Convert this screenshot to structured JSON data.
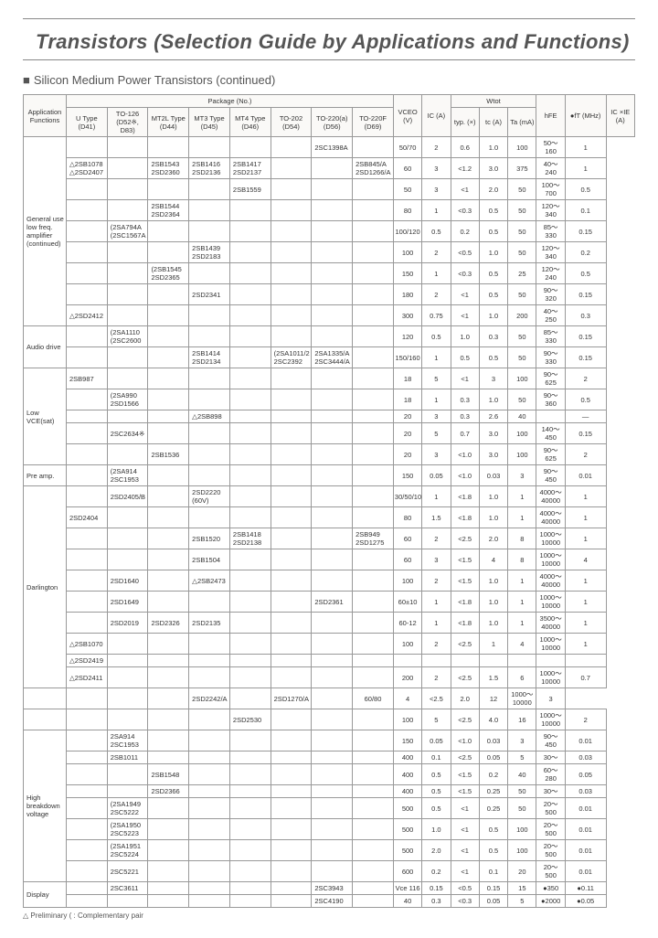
{
  "title": "Transistors (Selection Guide by Applications and Functions)",
  "subtitle": "Silicon Medium Power Transistors (continued)",
  "footnote": "△ Preliminary  ( : Complementary pair",
  "header": {
    "app": "Application Functions",
    "package": "Package (No.)",
    "pkg_cols": [
      "U Type (D41)",
      "TO-126 (D52※, D83)",
      "MT2L Type (D44)",
      "MT3 Type (D45)",
      "MT4 Type (D46)",
      "TO-202 (D54)",
      "TO-220(a) (D56)",
      "TO-220F (D69)"
    ],
    "vceo": "VCEO (V)",
    "ic": "IC (A)",
    "wtot": "Wtot",
    "wtot_sub": [
      "typ. (×)",
      "tc (A)",
      "Ta (mA)"
    ],
    "hfe": "hFE",
    "ft": "●fT (MHz)",
    "icvce": "IC ×IE (A)"
  },
  "apps": {
    "general": "General use low freq. amplifier (continued)",
    "audio": "Audio drive",
    "lowvce": "Low VCE(sat)",
    "preamp": "Pre amp.",
    "darlington": "Darlington",
    "highbv": "High breakdown voltage",
    "display": "Display"
  },
  "rows": [
    {
      "app": "general",
      "rowspan": 9,
      "pkg": [
        "",
        "",
        "",
        "",
        "",
        "",
        "2SC1398A",
        ""
      ],
      "spec": [
        "50/70",
        "2",
        "0.6",
        "1.0",
        "100",
        "50～160",
        "1"
      ]
    },
    {
      "pkg": [
        "△2SB1078 △2SD2407",
        "",
        "2SB1543 2SD2360",
        "2SB1416 2SD2136",
        "2SB1417 2SD2137",
        "",
        "",
        "2SB845/A 2SD1266/A"
      ],
      "spec": [
        "60",
        "3",
        "<1.2",
        "3.0",
        "375",
        "40～240",
        "1"
      ]
    },
    {
      "pkg": [
        "",
        "",
        "",
        "",
        "2SB1559",
        "",
        "",
        ""
      ],
      "spec": [
        "50",
        "3",
        "<1",
        "2.0",
        "50",
        "100～700",
        "0.5"
      ]
    },
    {
      "pkg": [
        "",
        "",
        "2SB1544 2SD2364",
        "",
        "",
        "",
        "",
        ""
      ],
      "spec": [
        "80",
        "1",
        "<0.3",
        "0.5",
        "50",
        "120～340",
        "0.1"
      ]
    },
    {
      "pkg": [
        "",
        "(2SA794A (2SC1567A",
        "",
        "",
        "",
        "",
        "",
        ""
      ],
      "spec": [
        "100/120",
        "0.5",
        "0.2",
        "0.5",
        "50",
        "85～330",
        "0.15"
      ]
    },
    {
      "pkg": [
        "",
        "",
        "",
        "2SB1439 2SD2183",
        "",
        "",
        "",
        ""
      ],
      "spec": [
        "100",
        "2",
        "<0.5",
        "1.0",
        "50",
        "120～340",
        "0.2"
      ]
    },
    {
      "pkg": [
        "",
        "",
        "(2SB1545 2SD2365",
        "",
        "",
        "",
        "",
        ""
      ],
      "spec": [
        "150",
        "1",
        "<0.3",
        "0.5",
        "25",
        "120～240",
        "0.5"
      ]
    },
    {
      "pkg": [
        "",
        "",
        "",
        "2SD2341",
        "",
        "",
        "",
        ""
      ],
      "spec": [
        "180",
        "2",
        "<1",
        "0.5",
        "50",
        "90～320",
        "0.15"
      ]
    },
    {
      "pkg": [
        "△2SD2412",
        "",
        "",
        "",
        "",
        "",
        "",
        ""
      ],
      "spec": [
        "300",
        "0.75",
        "<1",
        "1.0",
        "200",
        "40～250",
        "0.3"
      ]
    },
    {
      "app": "audio",
      "rowspan": 2,
      "pkg": [
        "",
        "(2SA1110 (2SC2600",
        "",
        "",
        "",
        "",
        "",
        ""
      ],
      "spec": [
        "120",
        "0.5",
        "1.0",
        "0.3",
        "50",
        "85～330",
        "0.15"
      ]
    },
    {
      "pkg": [
        "",
        "",
        "",
        "2SB1414 2SD2134",
        "",
        "(2SA1011/2 2SC2392",
        "2SA1335/A 2SC3444/A",
        ""
      ],
      "spec": [
        "150/160",
        "1",
        "0.5",
        "0.5",
        "50",
        "90～330",
        "0.15"
      ]
    },
    {
      "app": "lowvce",
      "rowspan": 5,
      "pkg": [
        "2SB987",
        "",
        "",
        "",
        "",
        "",
        "",
        ""
      ],
      "spec": [
        "18",
        "5",
        "<1",
        "3",
        "100",
        "90～625",
        "2"
      ]
    },
    {
      "pkg": [
        "",
        "(2SA990 2SD1566",
        "",
        "",
        "",
        "",
        "",
        ""
      ],
      "spec": [
        "18",
        "1",
        "0.3",
        "1.0",
        "50",
        "90～360",
        "0.5"
      ]
    },
    {
      "pkg": [
        "",
        "",
        "",
        "△2SB898",
        "",
        "",
        "",
        ""
      ],
      "spec": [
        "20",
        "3",
        "0.3",
        "2.6",
        "40",
        "",
        "—"
      ]
    },
    {
      "pkg": [
        "",
        "2SC2634※",
        "",
        "",
        "",
        "",
        "",
        ""
      ],
      "spec": [
        "20",
        "5",
        "0.7",
        "3.0",
        "100",
        "140～450",
        "0.15"
      ]
    },
    {
      "pkg": [
        "",
        "",
        "2SB1536",
        "",
        "",
        "",
        "",
        ""
      ],
      "spec": [
        "20",
        "3",
        "<1.0",
        "3.0",
        "100",
        "90～625",
        "2"
      ]
    },
    {
      "app": "preamp",
      "rowspan": 1,
      "pkg": [
        "",
        "(2SA914 2SC1953",
        "",
        "",
        "",
        "",
        "",
        ""
      ],
      "spec": [
        "150",
        "0.05",
        "<1.0",
        "0.03",
        "3",
        "90～450",
        "0.01"
      ]
    },
    {
      "app": "darlington",
      "rowspan": 10,
      "pkg": [
        "",
        "2SD2405/B",
        "",
        "2SD2220 (60V)",
        "",
        "",
        "",
        ""
      ],
      "spec": [
        "30/50/100",
        "1",
        "<1.8",
        "1.0",
        "1",
        "4000～40000",
        "1"
      ]
    },
    {
      "pkg": [
        "2SD2404",
        "",
        "",
        "",
        "",
        "",
        "",
        ""
      ],
      "spec": [
        "80",
        "1.5",
        "<1.8",
        "1.0",
        "1",
        "4000～40000",
        "1"
      ]
    },
    {
      "pkg": [
        "",
        "",
        "",
        "2SB1520",
        "2SB1418 2SD2138",
        "",
        "",
        "2SB949 2SD1275"
      ],
      "spec": [
        "60",
        "2",
        "<2.5",
        "2.0",
        "8",
        "1000～10000",
        "1"
      ]
    },
    {
      "pkg": [
        "",
        "",
        "",
        "2SB1504",
        "",
        "",
        "",
        ""
      ],
      "spec": [
        "60",
        "3",
        "<1.5",
        "4",
        "8",
        "1000～10000",
        "4"
      ]
    },
    {
      "pkg": [
        "",
        "2SD1640",
        "",
        "△2SB2473",
        "",
        "",
        "",
        ""
      ],
      "spec": [
        "100",
        "2",
        "<1.5",
        "1.0",
        "1",
        "4000～40000",
        "1"
      ]
    },
    {
      "pkg": [
        "",
        "2SD1649",
        "",
        "",
        "",
        "",
        "2SD2361",
        ""
      ],
      "spec": [
        "60±10",
        "1",
        "<1.8",
        "1.0",
        "1",
        "1000～10000",
        "1"
      ]
    },
    {
      "pkg": [
        "",
        "2SD2019",
        "2SD2326",
        "2SD2135",
        "",
        "",
        "",
        ""
      ],
      "spec": [
        "60-12",
        "1",
        "<1.8",
        "1.0",
        "1",
        "3500～40000",
        "1"
      ]
    },
    {
      "pkg": [
        "△2SB1070",
        "",
        "",
        "",
        "",
        "",
        "",
        ""
      ],
      "spec": [
        "100",
        "2",
        "<2.5",
        "1",
        "4",
        "1000～10000",
        "1"
      ]
    },
    {
      "pkg": [
        "△2SD2419",
        "",
        "",
        "",
        "",
        "",
        "",
        ""
      ],
      "spec": [
        "",
        "",
        "",
        "",
        "",
        "",
        ""
      ]
    },
    {
      "pkg": [
        "△2SD2411",
        "",
        "",
        "",
        "",
        "",
        "",
        ""
      ],
      "spec": [
        "200",
        "2",
        "<2.5",
        "1.5",
        "6",
        "1000～10000",
        "0.7"
      ]
    },
    {
      "app": "",
      "rowspan": 0,
      "pkg": [
        "",
        "",
        "",
        "",
        "2SD2242/A",
        "",
        "2SD1270/A",
        ""
      ],
      "spec": [
        "60/80",
        "4",
        "<2.5",
        "2.0",
        "12",
        "1000～10000",
        "3"
      ]
    },
    {
      "pkg": [
        "",
        "",
        "",
        "",
        "2SD2530",
        "",
        "",
        ""
      ],
      "spec": [
        "100",
        "5",
        "<2.5",
        "4.0",
        "16",
        "1000～10000",
        "2"
      ]
    },
    {
      "app": "highbv",
      "rowspan": 8,
      "pkg": [
        "",
        "2SA914 2SC1953",
        "",
        "",
        "",
        "",
        "",
        ""
      ],
      "spec": [
        "150",
        "0.05",
        "<1.0",
        "0.03",
        "3",
        "90～450",
        "0.01"
      ]
    },
    {
      "pkg": [
        "",
        "2SB1011",
        "",
        "",
        "",
        "",
        "",
        ""
      ],
      "spec": [
        "400",
        "0.1",
        "<2.5",
        "0.05",
        "5",
        "30～",
        "0.03"
      ]
    },
    {
      "pkg": [
        "",
        "",
        "2SB1548",
        "",
        "",
        "",
        "",
        ""
      ],
      "spec": [
        "400",
        "0.5",
        "<1.5",
        "0.2",
        "40",
        "60～280",
        "0.05"
      ]
    },
    {
      "pkg": [
        "",
        "",
        "2SD2366",
        "",
        "",
        "",
        "",
        ""
      ],
      "spec": [
        "400",
        "0.5",
        "<1.5",
        "0.25",
        "50",
        "30～",
        "0.03"
      ]
    },
    {
      "pkg": [
        "",
        "(2SA1949 2SC5222",
        "",
        "",
        "",
        "",
        "",
        ""
      ],
      "spec": [
        "500",
        "0.5",
        "<1",
        "0.25",
        "50",
        "20～500",
        "0.01"
      ]
    },
    {
      "pkg": [
        "",
        "(2SA1950 2SC5223",
        "",
        "",
        "",
        "",
        "",
        ""
      ],
      "spec": [
        "500",
        "1.0",
        "<1",
        "0.5",
        "100",
        "20～500",
        "0.01"
      ]
    },
    {
      "pkg": [
        "",
        "(2SA1951 2SC5224",
        "",
        "",
        "",
        "",
        "",
        ""
      ],
      "spec": [
        "500",
        "2.0",
        "<1",
        "0.5",
        "100",
        "20～500",
        "0.01"
      ]
    },
    {
      "pkg": [
        "",
        "2SC5221",
        "",
        "",
        "",
        "",
        "",
        ""
      ],
      "spec": [
        "600",
        "0.2",
        "<1",
        "0.1",
        "20",
        "20～500",
        "0.01"
      ]
    },
    {
      "app": "display",
      "rowspan": 2,
      "pkg": [
        "",
        "2SC3611",
        "",
        "",
        "",
        "",
        "2SC3943",
        ""
      ],
      "spec": [
        "Vce 116",
        "0.15",
        "<0.5",
        "0.15",
        "15",
        "●350",
        "●0.11"
      ]
    },
    {
      "pkg": [
        "",
        "",
        "",
        "",
        "",
        "",
        "2SC4190",
        ""
      ],
      "spec": [
        "40",
        "0.3",
        "<0.3",
        "0.05",
        "5",
        "●2000",
        "●0.05"
      ]
    }
  ]
}
